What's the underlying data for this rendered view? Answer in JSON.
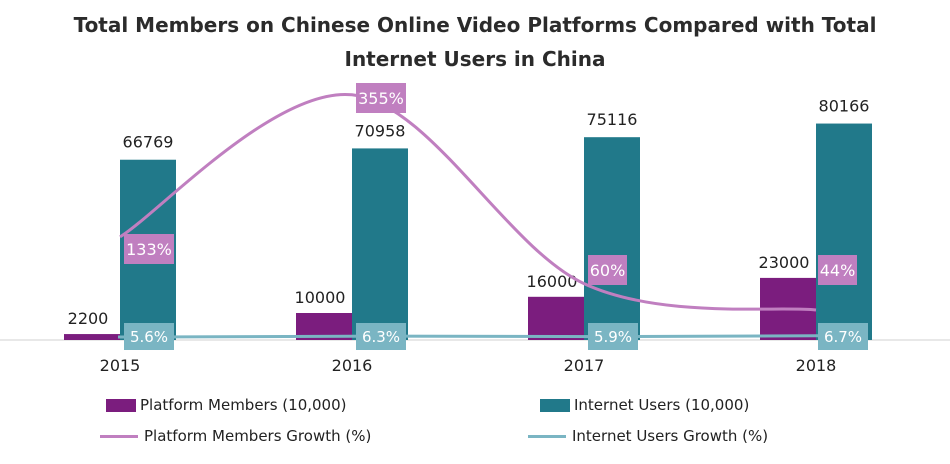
{
  "title": {
    "line1": "Total Members on Chinese Online Video Platforms Compared with Total",
    "line2": "Internet Users in China"
  },
  "colors": {
    "platform_members": "#7b1d7e",
    "internet_users": "#21798a",
    "platform_growth": "#c07fc0",
    "internet_growth": "#7ab5c3",
    "axis": "#d0d0d0"
  },
  "chart_data": {
    "type": "bar",
    "categories": [
      "2015",
      "2016",
      "2017",
      "2018"
    ],
    "series": [
      {
        "name": "Platform Members (10,000)",
        "type": "bar",
        "values": [
          2200,
          10000,
          16000,
          23000
        ],
        "labels": [
          "2200",
          "10000",
          "16000",
          "23000"
        ]
      },
      {
        "name": "Internet Users (10,000)",
        "type": "bar",
        "values": [
          66769,
          70958,
          75116,
          80166
        ],
        "labels": [
          "66769",
          "70958",
          "75116",
          "80166"
        ]
      },
      {
        "name": "Platform Members Growth (%)",
        "type": "line",
        "values": [
          133,
          355,
          60,
          44
        ],
        "labels": [
          "133%",
          "355%",
          "60%",
          "44%"
        ]
      },
      {
        "name": "Internet Users Growth (%)",
        "type": "line",
        "values": [
          5.6,
          6.3,
          5.9,
          6.7
        ],
        "labels": [
          "5.6%",
          "6.3%",
          "5.9%",
          "6.7%"
        ]
      }
    ],
    "legend": [
      "Platform Members (10,000)",
      "Internet Users (10,000)",
      "Platform Members Growth (%)",
      "Internet Users Growth (%)"
    ],
    "legend_position": "bottom",
    "grid": false
  }
}
